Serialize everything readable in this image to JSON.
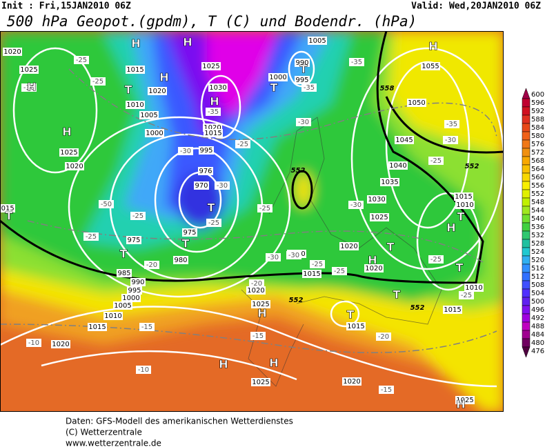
{
  "header": {
    "init": "Init : Fri,15JAN2010 06Z",
    "valid": "Valid: Wed,20JAN2010 06Z",
    "title": "500 hPa Geopot.(gpdm), T (C) und Bodendr. (hPa)"
  },
  "map": {
    "pressure_labels": [
      "1020",
      "1025",
      "1015",
      "1020",
      "1010",
      "1005",
      "1000",
      "1025",
      "1020",
      "1025",
      "1030",
      "1020",
      "1015",
      "995",
      "976",
      "970",
      "975",
      "980",
      "975",
      "985",
      "990",
      "995",
      "1000",
      "1005",
      "1010",
      "1015",
      "1020",
      "1025",
      "1020",
      "1025",
      "1020",
      "1010",
      "1015",
      "1020",
      "1025",
      "1030",
      "1035",
      "1040",
      "1045",
      "1050",
      "1055",
      "1005",
      "990",
      "995",
      "1000",
      "1015",
      "1010",
      "1010",
      "1015",
      "1015",
      "1020",
      "1015",
      "1025"
    ],
    "temperature_labels": [
      "-25",
      "-25",
      "-30",
      "-25",
      "-30",
      "-35",
      "-35",
      "-30",
      "-35",
      "-25",
      "-25",
      "-30",
      "-30",
      "-25",
      "-25",
      "-25",
      "-20",
      "-20",
      "-30",
      "-25",
      "-25",
      "-25",
      "-25",
      "-15",
      "-15",
      "-10",
      "-10",
      "-15",
      "-20",
      "-30",
      "-35",
      "-50",
      "-30"
    ],
    "centers": [
      "H",
      "H",
      "H",
      "T",
      "T",
      "H",
      "H",
      "T",
      "H",
      "T",
      "T",
      "T",
      "H",
      "H",
      "T",
      "T",
      "T",
      "H",
      "T",
      "T",
      "H",
      "H",
      "H",
      "T",
      "H"
    ],
    "height_labels": [
      "558",
      "552",
      "552",
      "552",
      "552"
    ]
  },
  "colorbar": {
    "labels": [
      600,
      596,
      592,
      588,
      584,
      580,
      576,
      572,
      568,
      564,
      560,
      556,
      552,
      548,
      544,
      540,
      536,
      532,
      528,
      524,
      520,
      516,
      512,
      508,
      504,
      500,
      496,
      492,
      488,
      484,
      480,
      476
    ],
    "colors": [
      "#a00048",
      "#c00030",
      "#d01020",
      "#e03020",
      "#e84818",
      "#f06018",
      "#f07818",
      "#f09010",
      "#f8a800",
      "#f8c000",
      "#f8d800",
      "#f8f000",
      "#e0f000",
      "#c0f000",
      "#a0e820",
      "#70e030",
      "#40d040",
      "#30c870",
      "#20c0a0",
      "#20c8d0",
      "#30b0f0",
      "#3090ff",
      "#3070ff",
      "#4050ff",
      "#5030ff",
      "#6020f0",
      "#8010f0",
      "#a000e0",
      "#c000c0",
      "#a00090",
      "#700060",
      "#500040"
    ]
  },
  "footer": {
    "lines": [
      "Daten: GFS-Modell des amerikanischen Wetterdienstes",
      "(C) Wetterzentrale",
      "www.wetterzentrale.de"
    ]
  }
}
